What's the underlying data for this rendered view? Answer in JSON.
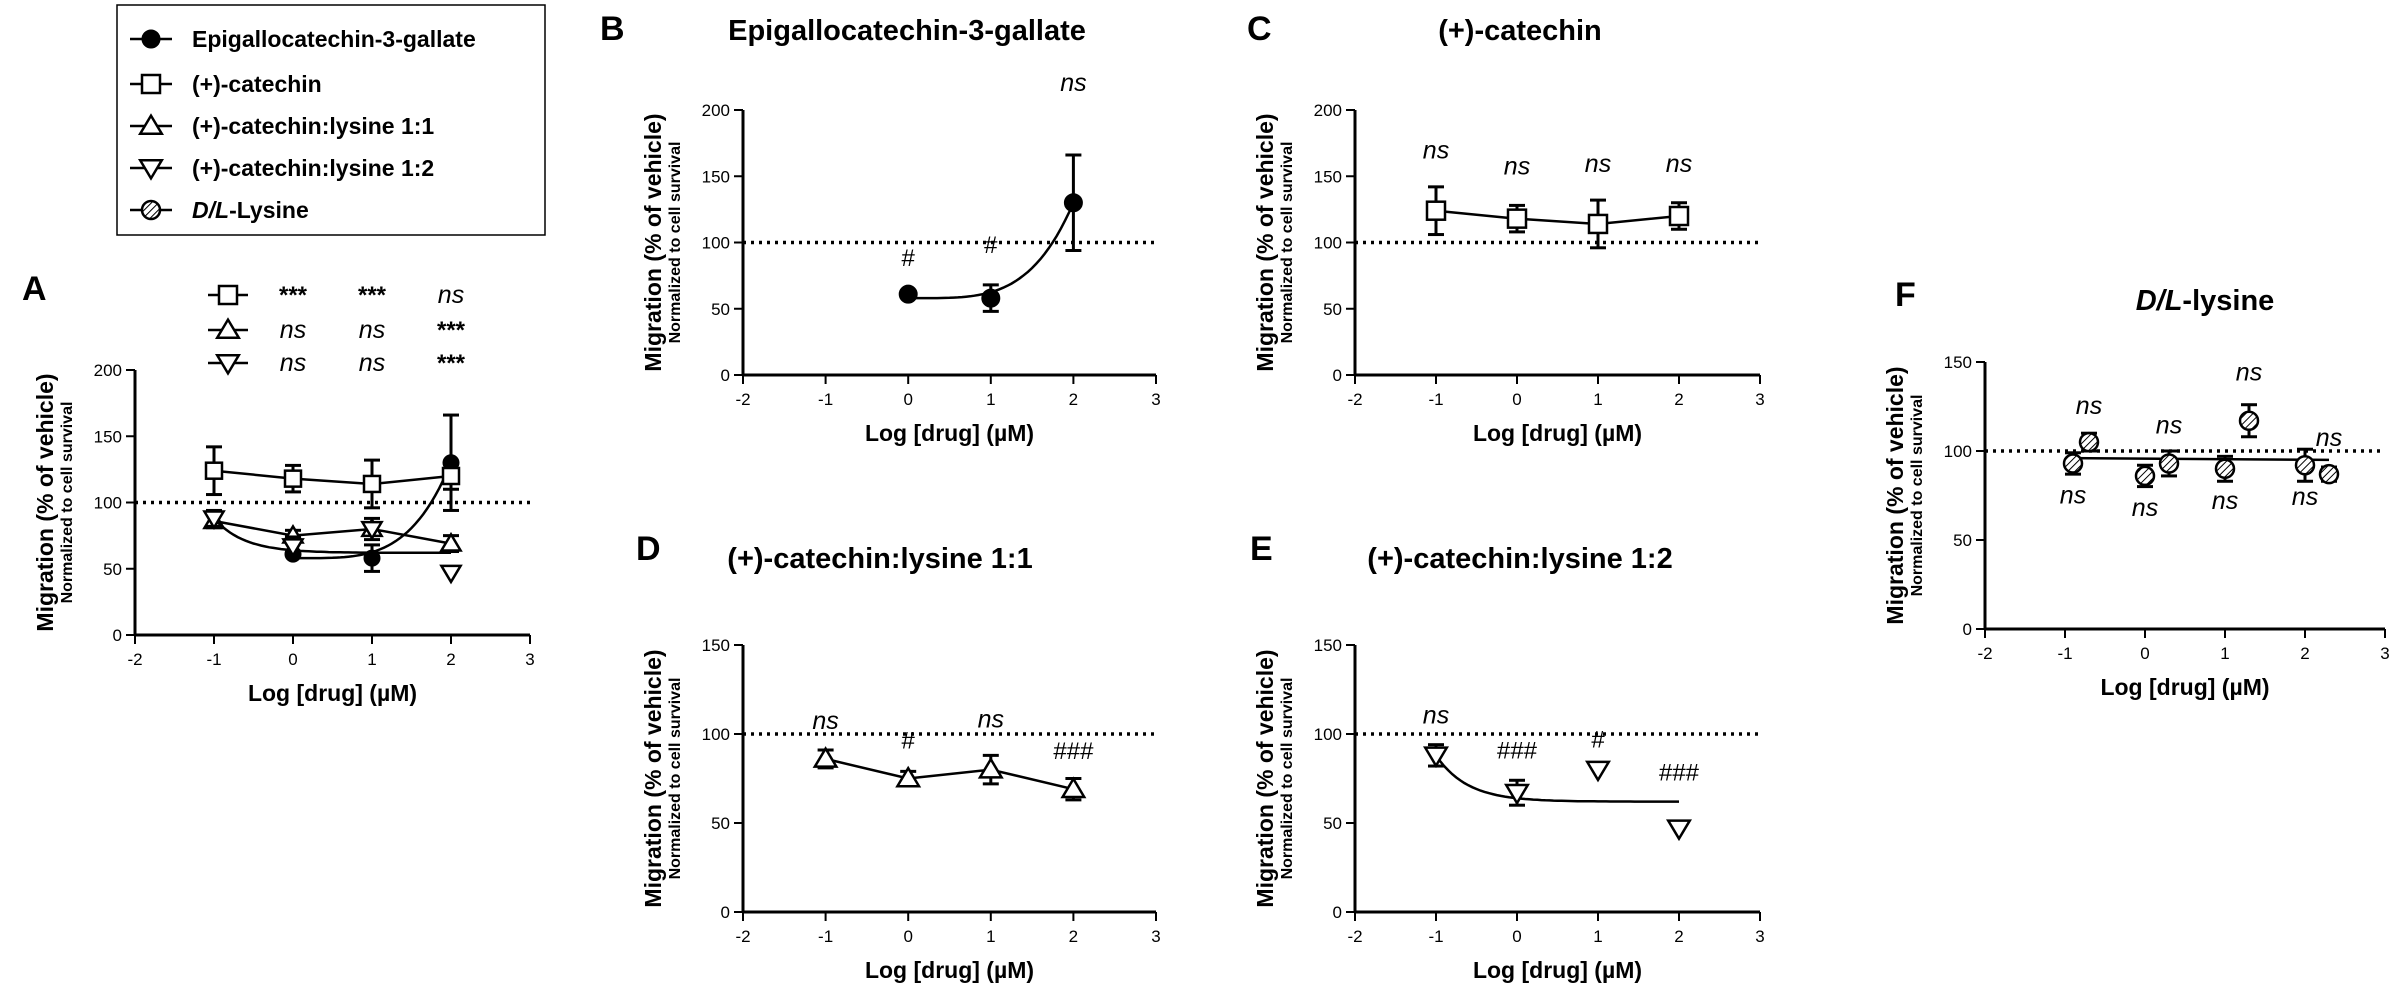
{
  "chart_data": [
    {
      "id": "A",
      "type": "line",
      "xlabel": "Log [drug] (µM)",
      "ylabel": "Migration (% of vehicle)",
      "ylabel_sub": "Normalized to cell survival",
      "xlim": [
        -2,
        3
      ],
      "ylim": [
        0,
        200
      ],
      "xticks": [
        "-2",
        "-1",
        "0",
        "1",
        "2",
        "3"
      ],
      "yticks": [
        "0",
        "50",
        "100",
        "150",
        "200"
      ],
      "reference_line": 100,
      "series": [
        {
          "name": "Epigallocatechin-3-gallate",
          "marker": "circle",
          "x": [
            0,
            1,
            2
          ],
          "y": [
            61,
            58,
            130
          ],
          "err": [
            0,
            10,
            36
          ]
        },
        {
          "name": "(+)-catechin",
          "marker": "square",
          "x": [
            -1,
            0,
            1,
            2
          ],
          "y": [
            124,
            118,
            114,
            120
          ],
          "err": [
            18,
            10,
            18,
            10
          ]
        },
        {
          "name": "(+)-catechin:lysine 1:1",
          "marker": "triangle-up",
          "x": [
            -1,
            0,
            1,
            2
          ],
          "y": [
            86,
            75,
            80,
            69
          ],
          "err": [
            5,
            4,
            8,
            6
          ]
        },
        {
          "name": "(+)-catechin:lysine 1:2",
          "marker": "triangle-down",
          "x": [
            -1,
            0,
            1,
            2
          ],
          "y": [
            88,
            67,
            80,
            47
          ],
          "err": [
            6,
            7,
            0,
            0
          ]
        }
      ],
      "significance_rows": [
        {
          "marker": "square",
          "labels": [
            "***",
            "***",
            "ns"
          ]
        },
        {
          "marker": "triangle-up",
          "labels": [
            "ns",
            "ns",
            "***"
          ]
        },
        {
          "marker": "triangle-down",
          "labels": [
            "ns",
            "ns",
            "***"
          ]
        }
      ]
    },
    {
      "id": "B",
      "type": "line",
      "title": "Epigallocatechin-3-gallate",
      "xlabel": "Log [drug] (µM)",
      "ylabel": "Migration (% of vehicle)",
      "ylabel_sub": "Normalized to cell survival",
      "xlim": [
        -2,
        3
      ],
      "ylim": [
        0,
        200
      ],
      "xticks": [
        "-2",
        "-1",
        "0",
        "1",
        "2",
        "3"
      ],
      "yticks": [
        "0",
        "50",
        "100",
        "150",
        "200"
      ],
      "reference_line": 100,
      "series": [
        {
          "name": "Epigallocatechin-3-gallate",
          "marker": "circle",
          "x": [
            0,
            1,
            2
          ],
          "y": [
            61,
            58,
            130
          ],
          "err": [
            0,
            10,
            36
          ],
          "labels": [
            "#",
            "#",
            "ns"
          ]
        }
      ]
    },
    {
      "id": "C",
      "type": "line",
      "title": "(+)-catechin",
      "xlabel": "Log [drug] (µM)",
      "ylabel": "Migration (% of vehicle)",
      "ylabel_sub": "Normalized to cell survival",
      "xlim": [
        -2,
        3
      ],
      "ylim": [
        0,
        200
      ],
      "xticks": [
        "-2",
        "-1",
        "0",
        "1",
        "2",
        "3"
      ],
      "yticks": [
        "0",
        "50",
        "100",
        "150",
        "200"
      ],
      "reference_line": 100,
      "series": [
        {
          "name": "(+)-catechin",
          "marker": "square",
          "x": [
            -1,
            0,
            1,
            2
          ],
          "y": [
            124,
            118,
            114,
            120
          ],
          "err": [
            18,
            10,
            18,
            10
          ],
          "labels": [
            "ns",
            "ns",
            "ns",
            "ns"
          ]
        }
      ]
    },
    {
      "id": "D",
      "type": "line",
      "title": "(+)-catechin:lysine 1:1",
      "xlabel": "Log [drug] (µM)",
      "ylabel": "Migration (% of vehicle)",
      "ylabel_sub": "Normalized to cell survival",
      "xlim": [
        -2,
        3
      ],
      "ylim": [
        0,
        150
      ],
      "xticks": [
        "-2",
        "-1",
        "0",
        "1",
        "2",
        "3"
      ],
      "yticks": [
        "0",
        "50",
        "100",
        "150"
      ],
      "reference_line": 100,
      "series": [
        {
          "name": "(+)-catechin:lysine 1:1",
          "marker": "triangle-up",
          "x": [
            -1,
            0,
            1,
            2
          ],
          "y": [
            86,
            75,
            80,
            69
          ],
          "err": [
            5,
            4,
            8,
            6
          ],
          "labels": [
            "ns",
            "#",
            "ns",
            "###"
          ]
        }
      ]
    },
    {
      "id": "E",
      "type": "line",
      "title": "(+)-catechin:lysine 1:2",
      "xlabel": "Log [drug] (µM)",
      "ylabel": "Migration (% of vehicle)",
      "ylabel_sub": "Normalized to cell survival",
      "xlim": [
        -2,
        3
      ],
      "ylim": [
        0,
        150
      ],
      "xticks": [
        "-2",
        "-1",
        "0",
        "1",
        "2",
        "3"
      ],
      "yticks": [
        "0",
        "50",
        "100",
        "150"
      ],
      "reference_line": 100,
      "series": [
        {
          "name": "(+)-catechin:lysine 1:2",
          "marker": "triangle-down",
          "x": [
            -1,
            0,
            1,
            2
          ],
          "y": [
            88,
            67,
            80,
            47
          ],
          "err": [
            6,
            7,
            0,
            0
          ],
          "labels": [
            "ns",
            "###",
            "#",
            "###"
          ]
        }
      ]
    },
    {
      "id": "F",
      "type": "line",
      "title": "D/L-lysine",
      "xlabel": "Log [drug] (µM)",
      "ylabel": "Migration (% of vehicle)",
      "ylabel_sub": "Normalized to cell survival",
      "xlim": [
        -2,
        3
      ],
      "ylim": [
        0,
        150
      ],
      "xticks": [
        "-2",
        "-1",
        "0",
        "1",
        "2",
        "3"
      ],
      "yticks": [
        "0",
        "50",
        "100",
        "150"
      ],
      "reference_line": 100,
      "series": [
        {
          "name": "D/L-Lysine",
          "marker": "circle-hatched",
          "x": [
            -0.9,
            -0.7,
            0,
            0.3,
            1,
            1.3,
            2,
            2.3
          ],
          "y": [
            93,
            105,
            86,
            93,
            90,
            117,
            92,
            87
          ],
          "err": [
            6,
            5,
            6,
            7,
            7,
            9,
            9,
            4
          ],
          "labels": [
            "ns",
            "ns",
            "ns",
            "ns",
            "ns",
            "ns",
            "ns",
            "ns"
          ]
        }
      ]
    }
  ],
  "legend": {
    "items": [
      {
        "label": "Epigallocatechin-3-gallate",
        "marker": "circle"
      },
      {
        "label": "(+)-catechin",
        "marker": "square"
      },
      {
        "label": "(+)-catechin:lysine 1:1",
        "marker": "triangle-up"
      },
      {
        "label": "(+)-catechin:lysine 1:2",
        "marker": "triangle-down"
      },
      {
        "label_italic": "D/L",
        "label_rest": "-Lysine",
        "marker": "circle-hatched"
      }
    ]
  },
  "titles": {
    "F_italic": "D/L",
    "F_rest": "-lysine"
  }
}
